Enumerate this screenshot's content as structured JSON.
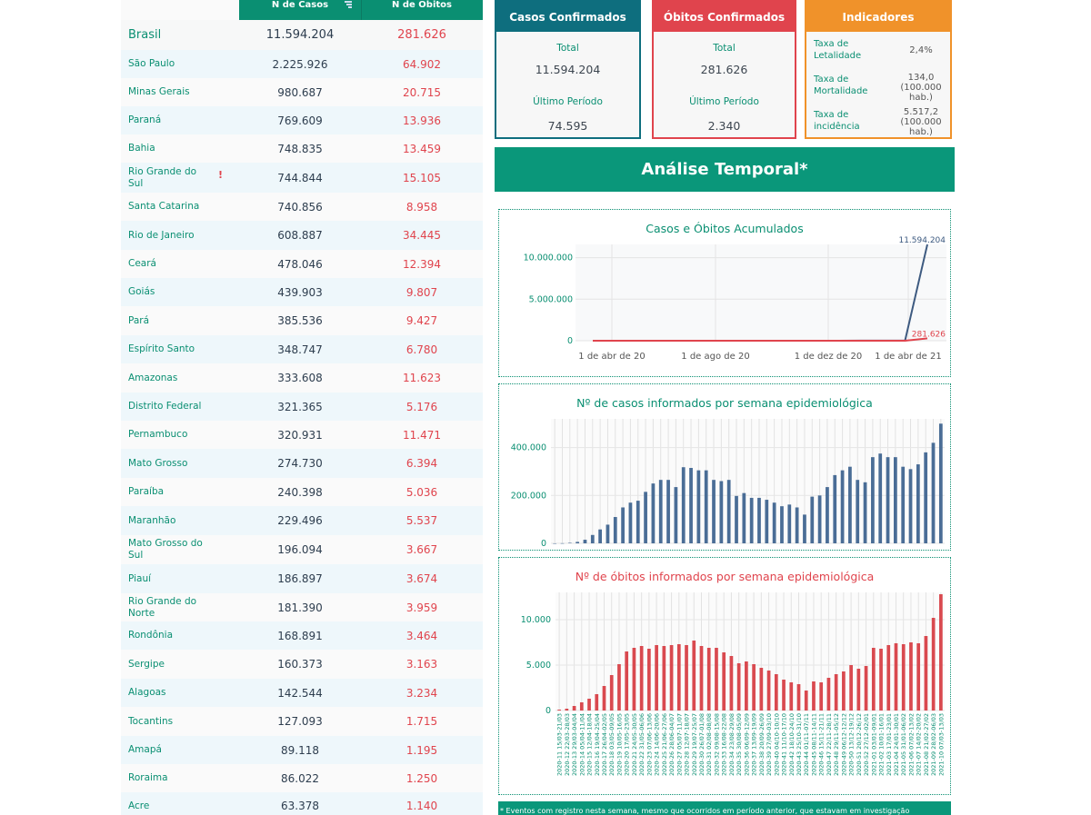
{
  "table": {
    "col_cases": "N de Casos",
    "col_deaths": "N de Óbitos",
    "rows": [
      {
        "state": "Brasil",
        "cases": "11.594.204",
        "deaths": "281.626"
      },
      {
        "state": "São Paulo",
        "cases": "2.225.926",
        "deaths": "64.902"
      },
      {
        "state": "Minas Gerais",
        "cases": "980.687",
        "deaths": "20.715"
      },
      {
        "state": "Paraná",
        "cases": "769.609",
        "deaths": "13.936"
      },
      {
        "state": "Bahia",
        "cases": "748.835",
        "deaths": "13.459"
      },
      {
        "state": "Rio Grande do Sul",
        "cases": "744.844",
        "deaths": "15.105",
        "flag": "!"
      },
      {
        "state": "Santa Catarina",
        "cases": "740.856",
        "deaths": "8.958"
      },
      {
        "state": "Rio de Janeiro",
        "cases": "608.887",
        "deaths": "34.445"
      },
      {
        "state": "Ceará",
        "cases": "478.046",
        "deaths": "12.394"
      },
      {
        "state": "Goiás",
        "cases": "439.903",
        "deaths": "9.807"
      },
      {
        "state": "Pará",
        "cases": "385.536",
        "deaths": "9.427"
      },
      {
        "state": "Espírito Santo",
        "cases": "348.747",
        "deaths": "6.780"
      },
      {
        "state": "Amazonas",
        "cases": "333.608",
        "deaths": "11.623"
      },
      {
        "state": "Distrito Federal",
        "cases": "321.365",
        "deaths": "5.176"
      },
      {
        "state": "Pernambuco",
        "cases": "320.931",
        "deaths": "11.471"
      },
      {
        "state": "Mato Grosso",
        "cases": "274.730",
        "deaths": "6.394"
      },
      {
        "state": "Paraíba",
        "cases": "240.398",
        "deaths": "5.036"
      },
      {
        "state": "Maranhão",
        "cases": "229.496",
        "deaths": "5.537"
      },
      {
        "state": "Mato Grosso do Sul",
        "cases": "196.094",
        "deaths": "3.667"
      },
      {
        "state": "Piauí",
        "cases": "186.897",
        "deaths": "3.674"
      },
      {
        "state": "Rio Grande do Norte",
        "cases": "181.390",
        "deaths": "3.959"
      },
      {
        "state": "Rondônia",
        "cases": "168.891",
        "deaths": "3.464"
      },
      {
        "state": "Sergipe",
        "cases": "160.373",
        "deaths": "3.163"
      },
      {
        "state": "Alagoas",
        "cases": "142.544",
        "deaths": "3.234"
      },
      {
        "state": "Tocantins",
        "cases": "127.093",
        "deaths": "1.715"
      },
      {
        "state": "Amapá",
        "cases": "89.118",
        "deaths": "1.195"
      },
      {
        "state": "Roraima",
        "cases": "86.022",
        "deaths": "1.250"
      },
      {
        "state": "Acre",
        "cases": "63.378",
        "deaths": "1.140"
      }
    ]
  },
  "cards": {
    "cases": {
      "title": "Casos Confirmados",
      "total_label": "Total",
      "total": "11.594.204",
      "period_label": "Último Período",
      "period": "74.595"
    },
    "deaths": {
      "title": "Óbitos Confirmados",
      "total_label": "Total",
      "total": "281.626",
      "period_label": "Último Período",
      "period": "2.340"
    },
    "indicators": {
      "title": "Indicadores",
      "items": [
        {
          "label": "Taxa de Letalidade",
          "value": "2,4%"
        },
        {
          "label": "Taxa de Mortalidade",
          "value": "134,0 (100.000 hab.)"
        },
        {
          "label": "Taxa de incidência",
          "value": "5.517,2 (100.000 hab.)"
        }
      ]
    }
  },
  "banner": "Análise Temporal*",
  "footnote": "* Eventos com registro nesta semana, mesmo que ocorridos em período anterior, que estavam em investigação",
  "colors": {
    "green": "#0a8f72",
    "cases": "#4a6d96",
    "deaths": "#e0444d",
    "indicators": "#f0922a"
  },
  "chart_data": [
    {
      "type": "line",
      "title": "Casos e Óbitos Acumulados",
      "x_ticks": [
        "1 de abr de 20",
        "1 de ago de 20",
        "1 de dez de 20",
        "1 de abr de 21"
      ],
      "y_ticks": [
        "0",
        "5.000.000",
        "10.000.000"
      ],
      "ylim": [
        0,
        11600000
      ],
      "series": [
        {
          "values": [
            2,
            6,
            90,
            300,
            800,
            1650,
            2600,
            3600,
            4400,
            5100,
            5800,
            6400,
            7500,
            8900,
            10200,
            11594204
          ],
          "end_label": "11.594.204"
        },
        {
          "values": [
            0,
            0,
            3,
            10,
            25,
            60,
            100,
            140,
            160,
            175,
            190,
            200,
            215,
            230,
            255,
            281626
          ],
          "end_label": "281.626"
        }
      ]
    },
    {
      "type": "bar",
      "title": "Nº de casos informados por semana epidemiológica",
      "y_ticks": [
        "0",
        "200.000",
        "400.000"
      ],
      "ylim": [
        0,
        520000
      ],
      "values": [
        100,
        500,
        2000,
        6000,
        15000,
        35000,
        58000,
        78000,
        110000,
        150000,
        170000,
        178000,
        215000,
        250000,
        265000,
        265000,
        235000,
        318000,
        315000,
        305000,
        305000,
        265000,
        260000,
        265000,
        198000,
        210000,
        190000,
        190000,
        182000,
        170000,
        155000,
        162000,
        150000,
        120000,
        195000,
        200000,
        235000,
        285000,
        305000,
        320000,
        265000,
        255000,
        360000,
        375000,
        360000,
        360000,
        320000,
        310000,
        330000,
        380000,
        420000,
        500000
      ]
    },
    {
      "type": "bar",
      "title": "Nº de óbitos informados por semana epidemiológica",
      "y_ticks": [
        "0",
        "5.000",
        "10.000"
      ],
      "ylim": [
        0,
        13000
      ],
      "categories": [
        "2020-11 15/03-21/03",
        "2020-12 22/03-28/03",
        "2020-13 29/03-04/04",
        "2020-14 05/04-11/04",
        "2020-15 12/04-18/04",
        "2020-16 19/04-25/04",
        "2020-17 26/04-02/05",
        "2020-18 03/05-09/05",
        "2020-19 10/05-16/05",
        "2020-20 17/05-23/05",
        "2020-21 24/05-30/05",
        "2020-22 31/05-06/06",
        "2020-23 07/06-13/06",
        "2020-24 14/06-20/06",
        "2020-25 21/06-27/06",
        "2020-26 28/06-04/07",
        "2020-27 05/07-11/07",
        "2020-28 12/07-18/07",
        "2020-29 19/07-25/07",
        "2020-30 26/07-01/08",
        "2020-31 02/08-08/08",
        "2020-32 09/08-15/08",
        "2020-33 16/08-22/08",
        "2020-34 23/08-29/08",
        "2020-35 30/08-05/09",
        "2020-36 06/09-12/09",
        "2020-37 13/09-19/09",
        "2020-38 20/09-26/09",
        "2020-39 27/09-03/10",
        "2020-40 04/10-10/10",
        "2020-41 11/10-17/10",
        "2020-42 18/10-24/10",
        "2020-43 25/10-31/10",
        "2020-44 01/11-07/11",
        "2020-45 08/11-14/11",
        "2020-46 15/11-21/11",
        "2020-47 22/11-28/11",
        "2020-48 29/11-05/12",
        "2020-49 06/12-12/12",
        "2020-50 13/12-19/12",
        "2020-51 20/12-26/12",
        "2020-52 27/12-02/01",
        "2021-01 03/01-09/01",
        "2021-02 10/01-16/01",
        "2021-03 17/01-23/01",
        "2021-04 24/01-30/01",
        "2021-05 31/01-06/02",
        "2021-06 07/02-13/02",
        "2021-07 14/02-20/02",
        "2021-08 21/02-27/02",
        "2021-09 28/02-06/03",
        "2021-10 07/03-13/03"
      ],
      "values": [
        100,
        200,
        500,
        900,
        1300,
        1800,
        2700,
        3900,
        5100,
        6500,
        6900,
        7100,
        6800,
        7200,
        7100,
        7200,
        7300,
        7200,
        7700,
        7100,
        6900,
        6900,
        6400,
        6000,
        5200,
        5400,
        5100,
        4700,
        4400,
        4000,
        3400,
        3100,
        2900,
        2200,
        3200,
        3100,
        3600,
        4000,
        4300,
        5000,
        4600,
        4900,
        6900,
        6800,
        7200,
        7400,
        7300,
        7500,
        7400,
        8200,
        10200,
        12800
      ]
    }
  ]
}
